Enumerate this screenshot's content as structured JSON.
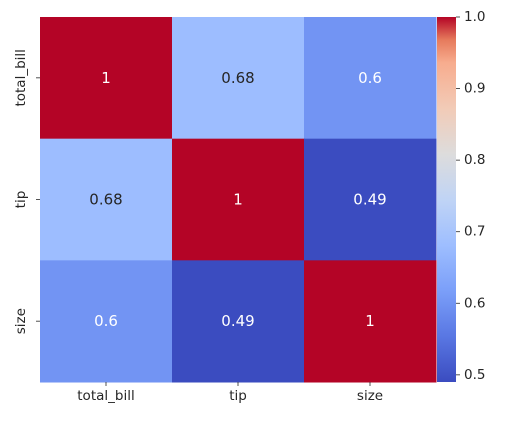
{
  "chart_data": {
    "type": "heatmap",
    "title": "",
    "xlabel": "",
    "ylabel": "",
    "x_categories": [
      "total_bill",
      "tip",
      "size"
    ],
    "y_categories": [
      "total_bill",
      "tip",
      "size"
    ],
    "matrix": [
      [
        1.0,
        0.68,
        0.6
      ],
      [
        0.68,
        1.0,
        0.49
      ],
      [
        0.6,
        0.49,
        1.0
      ]
    ],
    "annotations": [
      [
        "1",
        "0.68",
        "0.6"
      ],
      [
        "0.68",
        "1",
        "0.49"
      ],
      [
        "0.6",
        "0.49",
        "1"
      ]
    ],
    "colormap": "coolwarm",
    "colorbar": {
      "vmin": 0.49,
      "vmax": 1.0,
      "ticks": [
        "0.5",
        "0.6",
        "0.7",
        "0.8",
        "0.9",
        "1.0"
      ]
    },
    "annotation_colors": {
      "light": "#ffffff",
      "dark": "#262626"
    }
  }
}
